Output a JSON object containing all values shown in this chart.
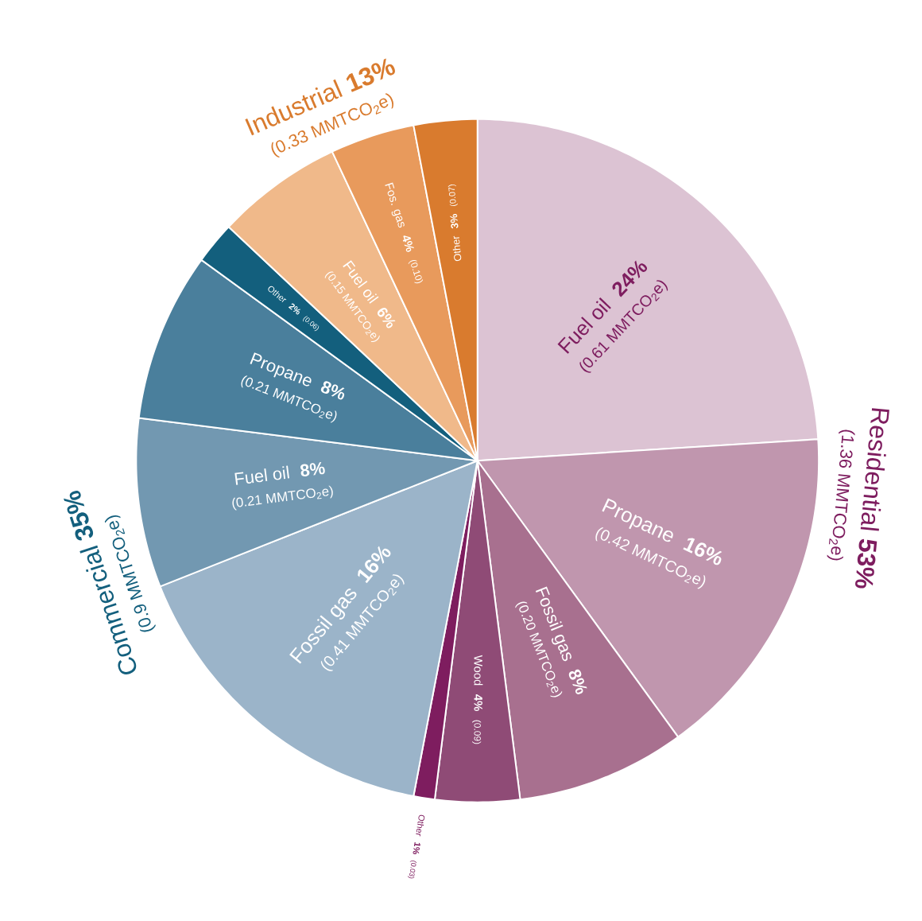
{
  "chart_data": {
    "type": "pie",
    "categories": [
      "Fuel oil",
      "Propane",
      "Fossil gas",
      "Wood",
      "Other",
      "Fossil gas",
      "Fuel oil",
      "Propane",
      "Other",
      "Fuel oil",
      "Fos. gas",
      "Other"
    ],
    "values": [
      24,
      16,
      8,
      4,
      1,
      16,
      8,
      8,
      2,
      6,
      4,
      3
    ],
    "colors": [
      "#dcc3d3",
      "#c096ae",
      "#a8708f",
      "#8f4b76",
      "#7e1d5f",
      "#9bb4c9",
      "#7298b1",
      "#4a7f9c",
      "#135f7d",
      "#f0b98a",
      "#e89a5c",
      "#d97b2e"
    ],
    "value_labels": [
      "24%",
      "16%",
      "8%",
      "4%",
      "1%",
      "16%",
      "8%",
      "8%",
      "2%",
      "6%",
      "4%",
      "3%"
    ],
    "annotations": [
      "(0.61 MMTCO$_{2}$e)",
      "(0.42 MMTCO$_{2}$e)",
      "(0.20 MMTCO$_{2}$e)",
      "(0.09)",
      "(0.03)",
      "(0.41 MMTCO$_{2}$e)",
      "(0.21 MMTCO$_{2}$e)",
      "(0.21 MMTCO$_{2}$e)",
      "(0.06)",
      "(0.15 MMTCO$_{2}$e)",
      "(0.10)",
      "(0.07)",
      "Residential **53%**",
      "(1.36 MMTCO$_{2}$e)",
      "Commercial **35%**",
      "(0.9 MMTCO$_{2}$e)",
      "Industrial **13%**",
      "(0.33 MMTCO$_{2}$e)"
    ]
  }
}
